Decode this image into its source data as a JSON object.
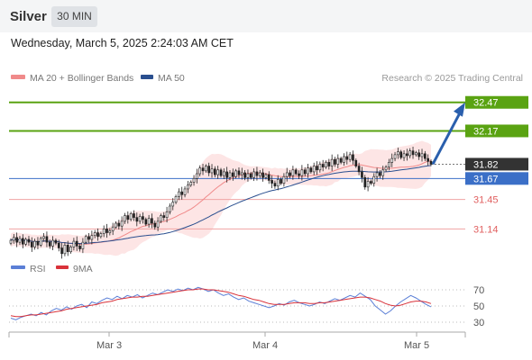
{
  "header": {
    "asset": "Silver",
    "timeframe": "30 MIN",
    "datetime": "Wednesday, March 5, 2025 2:24:03 AM CET"
  },
  "legend": {
    "ma20_label": "MA 20 + Bollinger Bands",
    "ma20_color": "#f08a8a",
    "ma50_label": "MA 50",
    "ma50_color": "#2a4f8f",
    "research": "Research © 2025 Trading Central"
  },
  "chart_data": [
    {
      "type": "candlestick",
      "title": "Silver",
      "x_tick_labels": [
        "Mar 3",
        "Mar 4",
        "Mar 5"
      ],
      "y_range": [
        30.85,
        32.6
      ],
      "grid": false,
      "current_price": 31.82,
      "levels": [
        {
          "value": 32.47,
          "label": "32.47",
          "kind": "target",
          "color": "#5aa312"
        },
        {
          "value": 32.17,
          "label": "32.17",
          "kind": "target",
          "color": "#5aa312"
        },
        {
          "value": 31.82,
          "label": "31.82",
          "kind": "last",
          "color": "#333333"
        },
        {
          "value": 31.67,
          "label": "31.67",
          "kind": "pivot",
          "color": "#3b6fc7"
        },
        {
          "value": 31.45,
          "label": "31.45",
          "kind": "support",
          "color": "#e06060"
        },
        {
          "value": 31.14,
          "label": "31.14",
          "kind": "support",
          "color": "#e06060"
        }
      ],
      "close": [
        31.02,
        31.05,
        31.0,
        31.04,
        30.98,
        31.03,
        31.0,
        30.95,
        31.01,
        30.97,
        31.04,
        31.06,
        31.0,
        30.96,
        31.02,
        30.99,
        30.94,
        30.88,
        30.97,
        30.9,
        30.95,
        31.01,
        30.96,
        30.93,
        31.0,
        31.06,
        31.03,
        31.07,
        31.1,
        31.06,
        31.09,
        31.14,
        31.1,
        31.12,
        31.16,
        31.2,
        31.17,
        31.22,
        31.28,
        31.24,
        31.3,
        31.26,
        31.22,
        31.27,
        31.24,
        31.19,
        31.25,
        31.2,
        31.16,
        31.22,
        31.28,
        31.26,
        31.32,
        31.38,
        31.42,
        31.48,
        31.53,
        31.5,
        31.56,
        31.6,
        31.63,
        31.67,
        31.72,
        31.78,
        31.75,
        31.8,
        31.73,
        31.77,
        31.71,
        31.76,
        31.7,
        31.74,
        31.68,
        31.73,
        31.69,
        31.75,
        31.71,
        31.73,
        31.68,
        31.72,
        31.68,
        31.74,
        31.7,
        31.73,
        31.68,
        31.71,
        31.65,
        31.62,
        31.59,
        31.66,
        31.62,
        31.69,
        31.73,
        31.7,
        31.76,
        31.72,
        31.7,
        31.76,
        31.72,
        31.78,
        31.74,
        31.8,
        31.76,
        31.82,
        31.79,
        31.84,
        31.8,
        31.87,
        31.82,
        31.88,
        31.84,
        31.9,
        31.87,
        31.92,
        31.86,
        31.8,
        31.74,
        31.68,
        31.58,
        31.64,
        31.62,
        31.69,
        31.73,
        31.7,
        31.76,
        31.79,
        31.84,
        31.88,
        31.92,
        31.95,
        31.89,
        31.93,
        31.91,
        31.96,
        31.92,
        31.94,
        31.9,
        31.93,
        31.88,
        31.85,
        31.82
      ]
    },
    {
      "type": "line",
      "title": "RSI",
      "y_tick_labels": [
        "70",
        "50",
        "30"
      ],
      "y_range": [
        20,
        80
      ],
      "series": [
        {
          "name": "RSI",
          "color": "#5b7fd6",
          "values": [
            35,
            33,
            36,
            38,
            40,
            38,
            42,
            39,
            44,
            47,
            45,
            49,
            46,
            50,
            52,
            48,
            55,
            53,
            57,
            60,
            58,
            62,
            59,
            63,
            61,
            64,
            60,
            63,
            66,
            64,
            67,
            70,
            68,
            71,
            69,
            72,
            70,
            73,
            71,
            68,
            70,
            66,
            63,
            65,
            61,
            58,
            60,
            56,
            54,
            52,
            50,
            48,
            50,
            53,
            51,
            55,
            57,
            54,
            52,
            50,
            52,
            55,
            53,
            56,
            59,
            57,
            60,
            63,
            61,
            66,
            62,
            58,
            50,
            45,
            40,
            44,
            50,
            55,
            59,
            63,
            60,
            56,
            52,
            49
          ]
        },
        {
          "name": "9MA",
          "color": "#d9323a",
          "values": [
            38,
            37,
            37,
            38,
            39,
            39,
            40,
            41,
            42,
            43,
            44,
            46,
            47,
            48,
            49,
            50,
            51,
            52,
            54,
            55,
            56,
            58,
            59,
            60,
            61,
            61,
            62,
            62,
            63,
            64,
            65,
            66,
            67,
            68,
            69,
            70,
            70,
            71,
            71,
            70,
            70,
            69,
            68,
            67,
            65,
            63,
            62,
            60,
            58,
            57,
            55,
            53,
            52,
            52,
            52,
            53,
            54,
            54,
            54,
            53,
            53,
            54,
            54,
            55,
            56,
            57,
            58,
            59,
            60,
            61,
            61,
            60,
            58,
            56,
            53,
            51,
            50,
            51,
            53,
            55,
            56,
            56,
            55,
            53
          ]
        }
      ]
    }
  ]
}
